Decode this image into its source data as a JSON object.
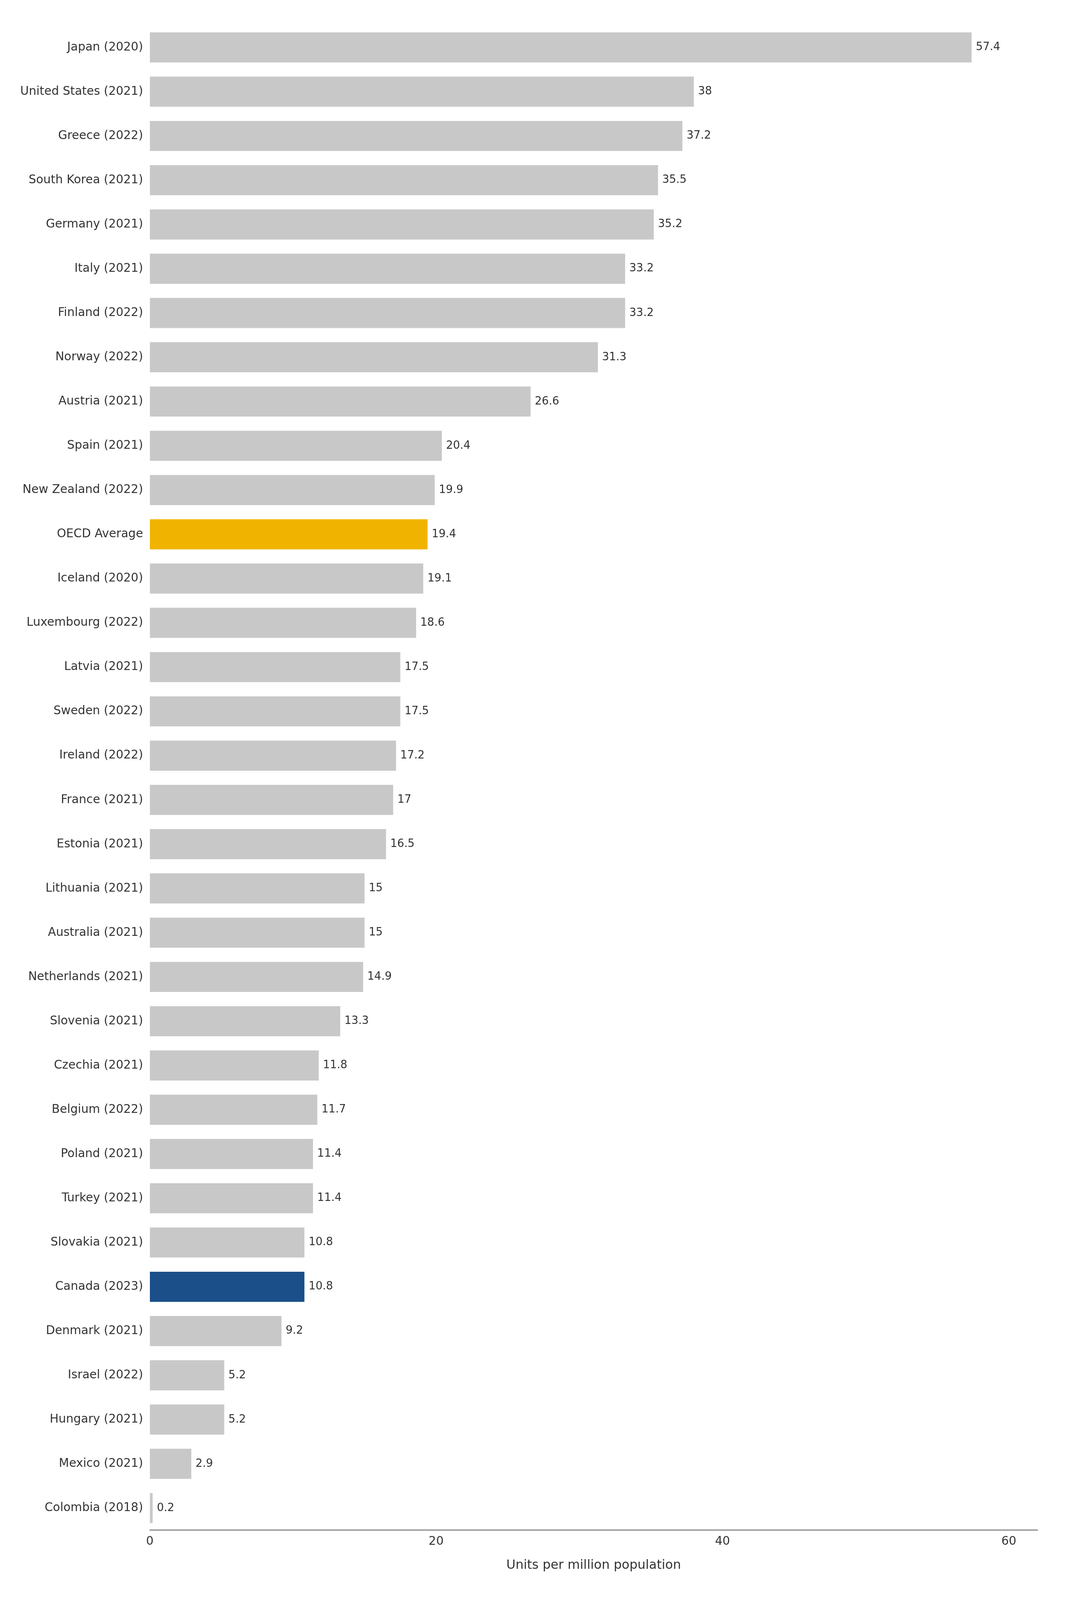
{
  "chart_data": {
    "type": "bar",
    "orientation": "horizontal",
    "categories": [
      "Japan (2020)",
      "United States (2021)",
      "Greece (2022)",
      "South Korea (2021)",
      "Germany (2021)",
      "Italy (2021)",
      "Finland (2022)",
      "Norway (2022)",
      "Austria (2021)",
      "Spain (2021)",
      "New Zealand (2022)",
      "OECD Average",
      "Iceland (2020)",
      "Luxembourg (2022)",
      "Latvia (2021)",
      "Sweden (2022)",
      "Ireland (2022)",
      "France (2021)",
      "Estonia (2021)",
      "Lithuania (2021)",
      "Australia (2021)",
      "Netherlands (2021)",
      "Slovenia (2021)",
      "Czechia (2021)",
      "Belgium (2022)",
      "Poland (2021)",
      "Turkey (2021)",
      "Slovakia (2021)",
      "Canada (2023)",
      "Denmark (2021)",
      "Israel (2022)",
      "Hungary (2021)",
      "Mexico (2021)",
      "Colombia (2018)"
    ],
    "values": [
      57.4,
      38.0,
      37.2,
      35.5,
      35.2,
      33.2,
      33.2,
      31.3,
      26.6,
      20.4,
      19.9,
      19.4,
      19.1,
      18.6,
      17.5,
      17.5,
      17.2,
      17.0,
      16.5,
      15.0,
      15.0,
      14.9,
      13.3,
      11.8,
      11.7,
      11.4,
      11.4,
      10.8,
      10.8,
      9.2,
      5.2,
      5.2,
      2.9,
      0.2
    ],
    "colors": [
      "#c8c8c8",
      "#c8c8c8",
      "#c8c8c8",
      "#c8c8c8",
      "#c8c8c8",
      "#c8c8c8",
      "#c8c8c8",
      "#c8c8c8",
      "#c8c8c8",
      "#c8c8c8",
      "#c8c8c8",
      "#f0b400",
      "#c8c8c8",
      "#c8c8c8",
      "#c8c8c8",
      "#c8c8c8",
      "#c8c8c8",
      "#c8c8c8",
      "#c8c8c8",
      "#c8c8c8",
      "#c8c8c8",
      "#c8c8c8",
      "#c8c8c8",
      "#c8c8c8",
      "#c8c8c8",
      "#c8c8c8",
      "#c8c8c8",
      "#c8c8c8",
      "#1a4f8a",
      "#c8c8c8",
      "#c8c8c8",
      "#c8c8c8",
      "#c8c8c8",
      "#c8c8c8"
    ],
    "xlabel": "Units per million population",
    "xlim": [
      0,
      62
    ],
    "xticks": [
      0,
      20,
      40,
      60
    ],
    "grid": false,
    "data_labels": true
  }
}
